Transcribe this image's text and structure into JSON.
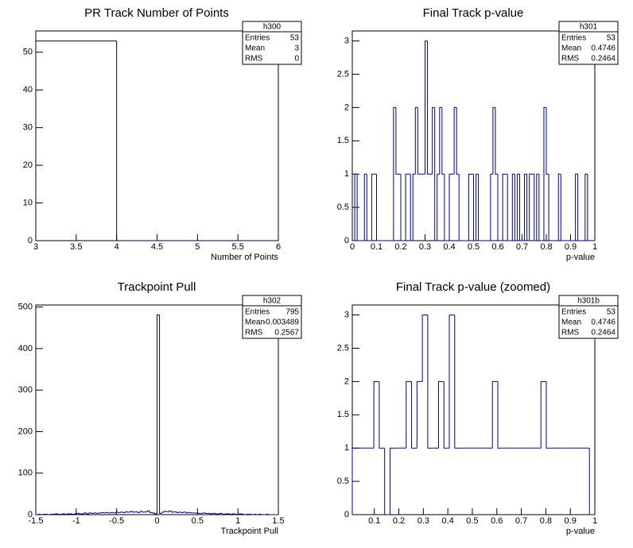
{
  "chart_data": [
    {
      "type": "histogram",
      "title": "PR Track Number of Points",
      "x_label": "Number of Points",
      "color": "#000033",
      "bins": [
        3,
        4,
        5,
        6
      ],
      "counts": [
        53,
        0,
        0
      ],
      "xlim": [
        3,
        6
      ],
      "ylim": [
        0,
        55.65
      ],
      "xticks": [
        3,
        3.5,
        4,
        4.5,
        5,
        5.5,
        6
      ],
      "yticks": [
        0,
        10,
        20,
        30,
        40,
        50
      ],
      "stats": {
        "title": "h300",
        "rows": [
          {
            "label": "Entries",
            "value": 53
          },
          {
            "label": "Mean",
            "value": 3
          },
          {
            "label": "RMS",
            "value": 0
          }
        ]
      }
    },
    {
      "type": "histogram",
      "title": "Final Track p-value",
      "x_label": "p-value",
      "color": "#000099",
      "bins": [
        0,
        0.01,
        0.02,
        0.03,
        0.04,
        0.05,
        0.06,
        0.07,
        0.08,
        0.09,
        0.1,
        0.11,
        0.12,
        0.13,
        0.14,
        0.15,
        0.16,
        0.17,
        0.18,
        0.19,
        0.2,
        0.21,
        0.22,
        0.23,
        0.24,
        0.25,
        0.26,
        0.27,
        0.28,
        0.29,
        0.3,
        0.31,
        0.32,
        0.33,
        0.34,
        0.35,
        0.36,
        0.37,
        0.38,
        0.39,
        0.4,
        0.41,
        0.42,
        0.43,
        0.44,
        0.45,
        0.46,
        0.47,
        0.48,
        0.49,
        0.5,
        0.51,
        0.52,
        0.53,
        0.54,
        0.55,
        0.56,
        0.57,
        0.58,
        0.59,
        0.6,
        0.61,
        0.62,
        0.63,
        0.64,
        0.65,
        0.66,
        0.67,
        0.68,
        0.69,
        0.7,
        0.71,
        0.72,
        0.73,
        0.74,
        0.75,
        0.76,
        0.77,
        0.78,
        0.79,
        0.8,
        0.81,
        0.82,
        0.83,
        0.84,
        0.85,
        0.86,
        0.87,
        0.88,
        0.89,
        0.9,
        0.91,
        0.92,
        0.93,
        0.94,
        0.95,
        0.96,
        0.97,
        0.98,
        0.99,
        1
      ],
      "counts": [
        0,
        1,
        0,
        0,
        0,
        1,
        0,
        0,
        1,
        1,
        0,
        0,
        0,
        0,
        0,
        0,
        0,
        2,
        1,
        1,
        0,
        0,
        1,
        1,
        0,
        1,
        2,
        1,
        1,
        1,
        3,
        1,
        1,
        2,
        0,
        1,
        2,
        1,
        0,
        0,
        1,
        1,
        2,
        1,
        0,
        0,
        0,
        0,
        1,
        1,
        0,
        1,
        0,
        0,
        0,
        0,
        0,
        1,
        2,
        1,
        0,
        0,
        1,
        1,
        0,
        0,
        1,
        0,
        1,
        0,
        0,
        1,
        0,
        1,
        1,
        0,
        1,
        0,
        0,
        2,
        1,
        0,
        0,
        0,
        0,
        1,
        0,
        0,
        0,
        0,
        0,
        0,
        1,
        0,
        0,
        0,
        1,
        0,
        0,
        0
      ],
      "xlim": [
        0,
        1
      ],
      "ylim": [
        0,
        3.15
      ],
      "xticks": [
        0,
        0.1,
        0.2,
        0.3,
        0.4,
        0.5,
        0.6,
        0.7,
        0.8,
        0.9,
        1
      ],
      "yticks": [
        0,
        0.5,
        1,
        1.5,
        2,
        2.5,
        3
      ],
      "stats": {
        "title": "h301",
        "rows": [
          {
            "label": "Entries",
            "value": 53
          },
          {
            "label": "Mean",
            "value": 0.4746
          },
          {
            "label": "RMS",
            "value": 0.2464
          }
        ]
      }
    },
    {
      "type": "histogram",
      "title": "Trackpoint Pull",
      "x_label": "Trackpoint Pull",
      "color": "#000099",
      "bins": [
        -1.5,
        -1.47,
        -1.44,
        -1.41,
        -1.38,
        -1.35,
        -1.32,
        -1.29,
        -1.26,
        -1.23,
        -1.2,
        -1.17,
        -1.14,
        -1.11,
        -1.08,
        -1.05,
        -1.02,
        -0.99,
        -0.96,
        -0.93,
        -0.9,
        -0.87,
        -0.84,
        -0.81,
        -0.78,
        -0.75,
        -0.72,
        -0.69,
        -0.66,
        -0.63,
        -0.6,
        -0.57,
        -0.54,
        -0.51,
        -0.48,
        -0.45,
        -0.42,
        -0.39,
        -0.36,
        -0.33,
        -0.3,
        -0.27,
        -0.24,
        -0.21,
        -0.18,
        -0.15,
        -0.12,
        -0.09,
        -0.06,
        -0.03,
        0,
        0.03,
        0.06,
        0.09,
        0.12,
        0.15,
        0.18,
        0.21,
        0.24,
        0.27,
        0.3,
        0.33,
        0.36,
        0.39,
        0.42,
        0.45,
        0.48,
        0.51,
        0.54,
        0.57,
        0.6,
        0.63,
        0.66,
        0.69,
        0.72,
        0.75,
        0.78,
        0.81,
        0.84,
        0.87,
        0.9,
        0.93,
        0.96,
        0.99,
        1.02,
        1.05,
        1.08,
        1.11,
        1.14,
        1.17,
        1.2,
        1.23,
        1.26,
        1.29,
        1.32,
        1.35,
        1.38,
        1.41,
        1.44,
        1.47,
        1.5
      ],
      "counts": [
        0,
        1,
        0,
        1,
        1,
        0,
        1,
        1,
        2,
        1,
        1,
        2,
        1,
        2,
        2,
        1,
        2,
        3,
        2,
        2,
        4,
        2,
        4,
        3,
        4,
        3,
        4,
        5,
        4,
        5,
        4,
        5,
        4,
        6,
        5,
        6,
        5,
        7,
        6,
        8,
        6,
        7,
        5,
        8,
        6,
        7,
        9,
        5,
        4,
        2,
        481,
        3,
        6,
        8,
        7,
        9,
        6,
        7,
        5,
        6,
        5,
        6,
        4,
        5,
        4,
        4,
        4,
        3,
        3,
        4,
        3,
        3,
        2,
        3,
        2,
        2,
        3,
        1,
        2,
        2,
        1,
        2,
        1,
        1,
        2,
        1,
        0,
        1,
        1,
        0,
        1,
        0,
        1,
        0,
        0,
        1,
        0,
        0,
        0,
        0
      ],
      "xlim": [
        -1.5,
        1.5
      ],
      "ylim": [
        0,
        505
      ],
      "xticks": [
        -1.5,
        -1,
        -0.5,
        0,
        0.5,
        1,
        1.5
      ],
      "yticks": [
        0,
        100,
        200,
        300,
        400,
        500
      ],
      "stats": {
        "title": "h302",
        "rows": [
          {
            "label": "Entries",
            "value": 795
          },
          {
            "label": "Mean",
            "value": -0.003489
          },
          {
            "label": "RMS",
            "value": 0.2567
          }
        ]
      }
    },
    {
      "type": "histogram",
      "title": "Final Track p-value (zoomed)",
      "x_label": "p-value",
      "color": "#000099",
      "bins": [
        0.01,
        0.032,
        0.054,
        0.076,
        0.098,
        0.12,
        0.142,
        0.164,
        0.186,
        0.208,
        0.23,
        0.252,
        0.274,
        0.296,
        0.318,
        0.34,
        0.362,
        0.384,
        0.406,
        0.428,
        0.45,
        0.472,
        0.494,
        0.516,
        0.538,
        0.56,
        0.582,
        0.604,
        0.626,
        0.648,
        0.67,
        0.692,
        0.714,
        0.736,
        0.758,
        0.78,
        0.802,
        0.824,
        0.846,
        0.868,
        0.89,
        0.912,
        0.934,
        0.956,
        0.978,
        1
      ],
      "counts": [
        1,
        1,
        1,
        1,
        2,
        1,
        0,
        1,
        1,
        1,
        2,
        1,
        2,
        3,
        1,
        1,
        2,
        1,
        3,
        1,
        1,
        1,
        1,
        1,
        1,
        1,
        2,
        1,
        1,
        1,
        1,
        1,
        1,
        1,
        1,
        2,
        1,
        1,
        1,
        1,
        1,
        1,
        1,
        1,
        0
      ],
      "xlim": [
        0.01,
        1
      ],
      "ylim": [
        0,
        3.15
      ],
      "xticks": [
        0.1,
        0.2,
        0.3,
        0.4,
        0.5,
        0.6,
        0.7,
        0.8,
        0.9,
        1
      ],
      "yticks": [
        0,
        0.5,
        1,
        1.5,
        2,
        2.5,
        3
      ],
      "stats": {
        "title": "h301b",
        "rows": [
          {
            "label": "Entries",
            "value": 53
          },
          {
            "label": "Mean",
            "value": 0.4746
          },
          {
            "label": "RMS",
            "value": 0.2464
          }
        ]
      }
    }
  ]
}
